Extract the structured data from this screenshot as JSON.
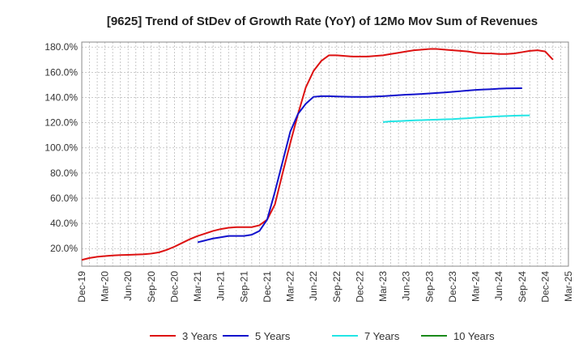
{
  "chart_data": {
    "type": "line",
    "title": "[9625]  Trend of StDev of Growth Rate (YoY) of 12Mo Mov Sum of Revenues",
    "xlabel": "",
    "ylabel": "",
    "ylim": [
      6,
      184
    ],
    "y_ticks": [
      20,
      40,
      60,
      80,
      100,
      120,
      140,
      160,
      180
    ],
    "y_tick_labels": [
      "20.0%",
      "40.0%",
      "60.0%",
      "80.0%",
      "100.0%",
      "120.0%",
      "140.0%",
      "160.0%",
      "180.0%"
    ],
    "x_tick_labels": [
      "Dec-19",
      "Mar-20",
      "Jun-20",
      "Sep-20",
      "Dec-20",
      "Mar-21",
      "Jun-21",
      "Sep-21",
      "Dec-21",
      "Mar-22",
      "Jun-22",
      "Sep-22",
      "Dec-22",
      "Mar-23",
      "Jun-23",
      "Sep-23",
      "Dec-23",
      "Mar-24",
      "Jun-24",
      "Sep-24",
      "Dec-24",
      "Mar-25"
    ],
    "x_start": "Dec-19",
    "x_months_total": 63,
    "grid": true,
    "legend_position": "bottom",
    "series": [
      {
        "name": "3 Years",
        "color": "#dd1111",
        "start_month": 0,
        "values": [
          11,
          12.5,
          13.5,
          14,
          14.5,
          14.8,
          15,
          15.2,
          15.5,
          16,
          17,
          19,
          21.5,
          24.5,
          27.5,
          30,
          32,
          34,
          35.5,
          36.5,
          37,
          37,
          37,
          38.5,
          43,
          55,
          80,
          104,
          127,
          148,
          161,
          169,
          173.5,
          173.5,
          173,
          172.5,
          172.5,
          172.5,
          173,
          173.5,
          174.5,
          175.5,
          176.5,
          177.5,
          178,
          178.5,
          178.5,
          178,
          177.5,
          177,
          176.5,
          175.5,
          175,
          175,
          174.5,
          174.5,
          175,
          176,
          177,
          177.5,
          176.5,
          170
        ]
      },
      {
        "name": "5 Years",
        "color": "#1111cc",
        "start_month": 15,
        "values": [
          25,
          26.5,
          28,
          29,
          30,
          30,
          30,
          31,
          34,
          43,
          65,
          89,
          113,
          127,
          135,
          140.5,
          141,
          141,
          140.8,
          140.6,
          140.5,
          140.5,
          140.5,
          140.8,
          141,
          141.4,
          141.8,
          142.2,
          142.5,
          142.8,
          143.2,
          143.6,
          144,
          144.5,
          145,
          145.5,
          146,
          146.3,
          146.6,
          147,
          147.2,
          147.3,
          147.4
        ]
      },
      {
        "name": "7 Years",
        "color": "#22e5e5",
        "start_month": 39,
        "values": [
          120.5,
          121,
          121.2,
          121.5,
          121.8,
          122,
          122.2,
          122.4,
          122.6,
          122.8,
          123.2,
          123.5,
          124,
          124.3,
          124.7,
          125,
          125.3,
          125.5,
          125.7,
          125.8
        ]
      },
      {
        "name": "10 Years",
        "color": "#1a8a1a",
        "start_month": 63,
        "values": []
      }
    ]
  }
}
